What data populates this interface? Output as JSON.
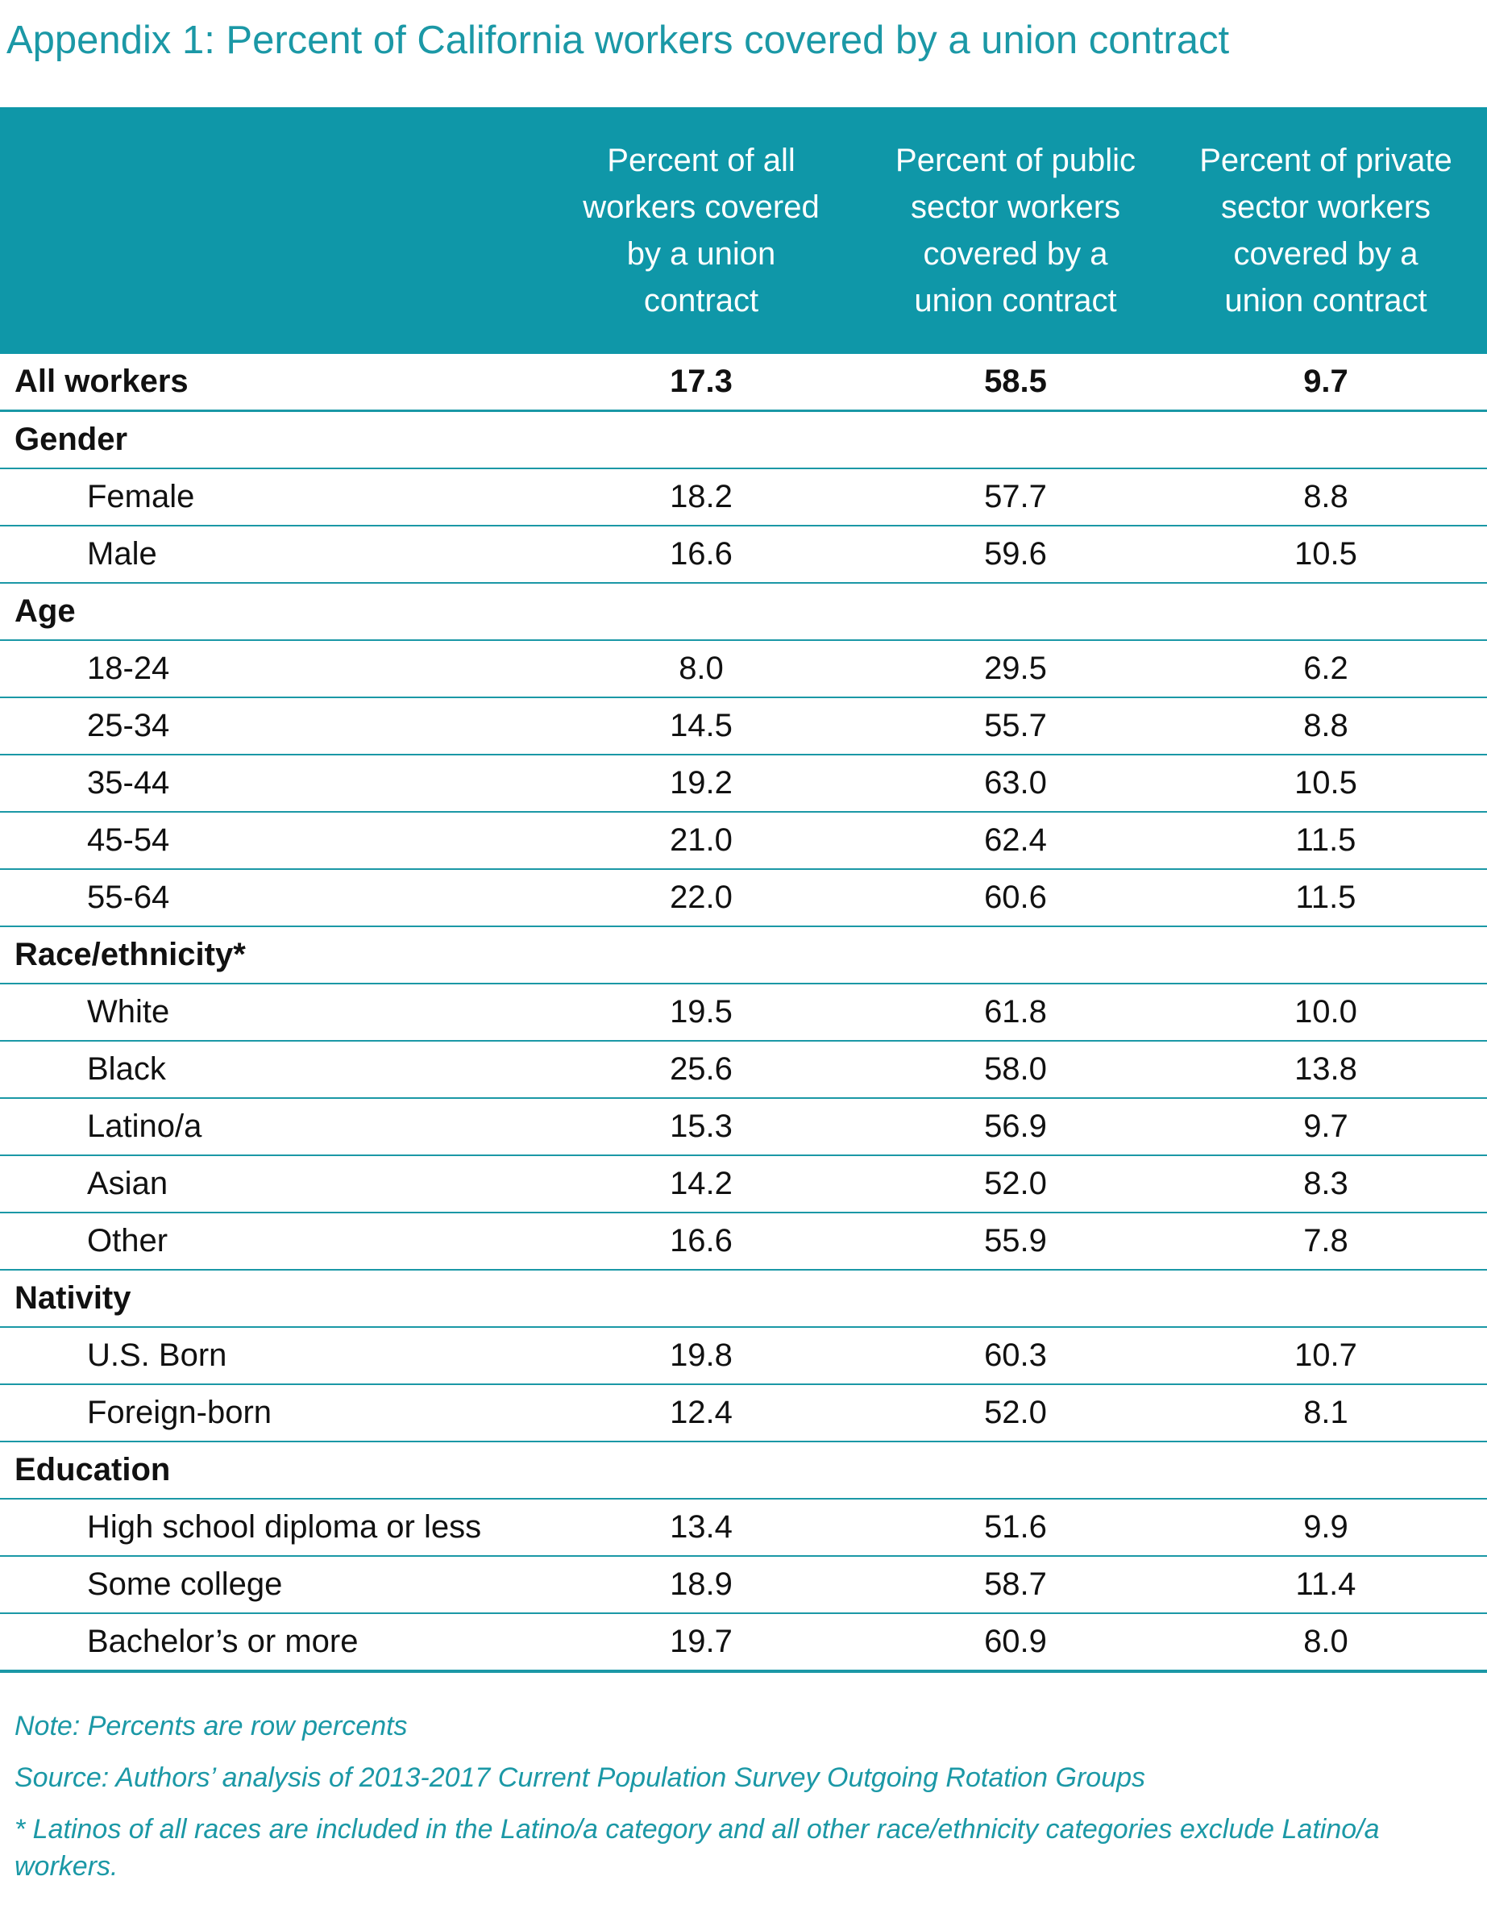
{
  "title": "Appendix 1: Percent of California workers covered by a union contract",
  "table": {
    "headers": [
      "",
      [
        "Percent of all",
        "workers covered",
        "by a union",
        "contract"
      ],
      [
        "Percent of public",
        "sector workers",
        "covered by a",
        "union contract"
      ],
      [
        "Percent of private",
        "sector workers",
        "covered by a",
        "union contract"
      ]
    ],
    "rows": [
      {
        "kind": "main",
        "label": "All workers",
        "values": [
          "17.3",
          "58.5",
          "9.7"
        ]
      },
      {
        "kind": "group",
        "label": "Gender",
        "values": []
      },
      {
        "kind": "row",
        "label": "Female",
        "values": [
          "18.2",
          "57.7",
          "8.8"
        ]
      },
      {
        "kind": "row",
        "label": "Male",
        "values": [
          "16.6",
          "59.6",
          "10.5"
        ]
      },
      {
        "kind": "group",
        "label": "Age",
        "values": []
      },
      {
        "kind": "row",
        "label": "18-24",
        "values": [
          "8.0",
          "29.5",
          "6.2"
        ]
      },
      {
        "kind": "row",
        "label": "25-34",
        "values": [
          "14.5",
          "55.7",
          "8.8"
        ]
      },
      {
        "kind": "row",
        "label": "35-44",
        "values": [
          "19.2",
          "63.0",
          "10.5"
        ]
      },
      {
        "kind": "row",
        "label": "45-54",
        "values": [
          "21.0",
          "62.4",
          "11.5"
        ]
      },
      {
        "kind": "row",
        "label": "55-64",
        "values": [
          "22.0",
          "60.6",
          "11.5"
        ]
      },
      {
        "kind": "group",
        "label": "Race/ethnicity*",
        "values": []
      },
      {
        "kind": "row",
        "label": "White",
        "values": [
          "19.5",
          "61.8",
          "10.0"
        ]
      },
      {
        "kind": "row",
        "label": "Black",
        "values": [
          "25.6",
          "58.0",
          "13.8"
        ]
      },
      {
        "kind": "row",
        "label": "Latino/a",
        "values": [
          "15.3",
          "56.9",
          "9.7"
        ]
      },
      {
        "kind": "row",
        "label": "Asian",
        "values": [
          "14.2",
          "52.0",
          "8.3"
        ]
      },
      {
        "kind": "row",
        "label": "Other",
        "values": [
          "16.6",
          "55.9",
          "7.8"
        ]
      },
      {
        "kind": "group",
        "label": "Nativity",
        "values": []
      },
      {
        "kind": "row",
        "label": "U.S. Born",
        "values": [
          "19.8",
          "60.3",
          "10.7"
        ]
      },
      {
        "kind": "row",
        "label": "Foreign-born",
        "values": [
          "12.4",
          "52.0",
          "8.1"
        ]
      },
      {
        "kind": "group",
        "label": "Education",
        "values": []
      },
      {
        "kind": "row",
        "label": "High school diploma or less",
        "values": [
          "13.4",
          "51.6",
          "9.9"
        ]
      },
      {
        "kind": "row",
        "label": "Some college",
        "values": [
          "18.9",
          "58.7",
          "11.4"
        ]
      },
      {
        "kind": "row",
        "label": "Bachelor’s or more",
        "values": [
          "19.7",
          "60.9",
          "8.0"
        ]
      }
    ]
  },
  "notes": [
    "Note: Percents are row percents",
    "Source: Authors’ analysis of 2013-2017 Current Population Survey Outgoing Rotation Groups",
    "* Latinos of all races are included in the Latino/a category and all other race/ethnicity categories exclude Latino/a workers."
  ],
  "colors": {
    "accent": "#1b98a6",
    "header_bg": "#0f97a8"
  }
}
